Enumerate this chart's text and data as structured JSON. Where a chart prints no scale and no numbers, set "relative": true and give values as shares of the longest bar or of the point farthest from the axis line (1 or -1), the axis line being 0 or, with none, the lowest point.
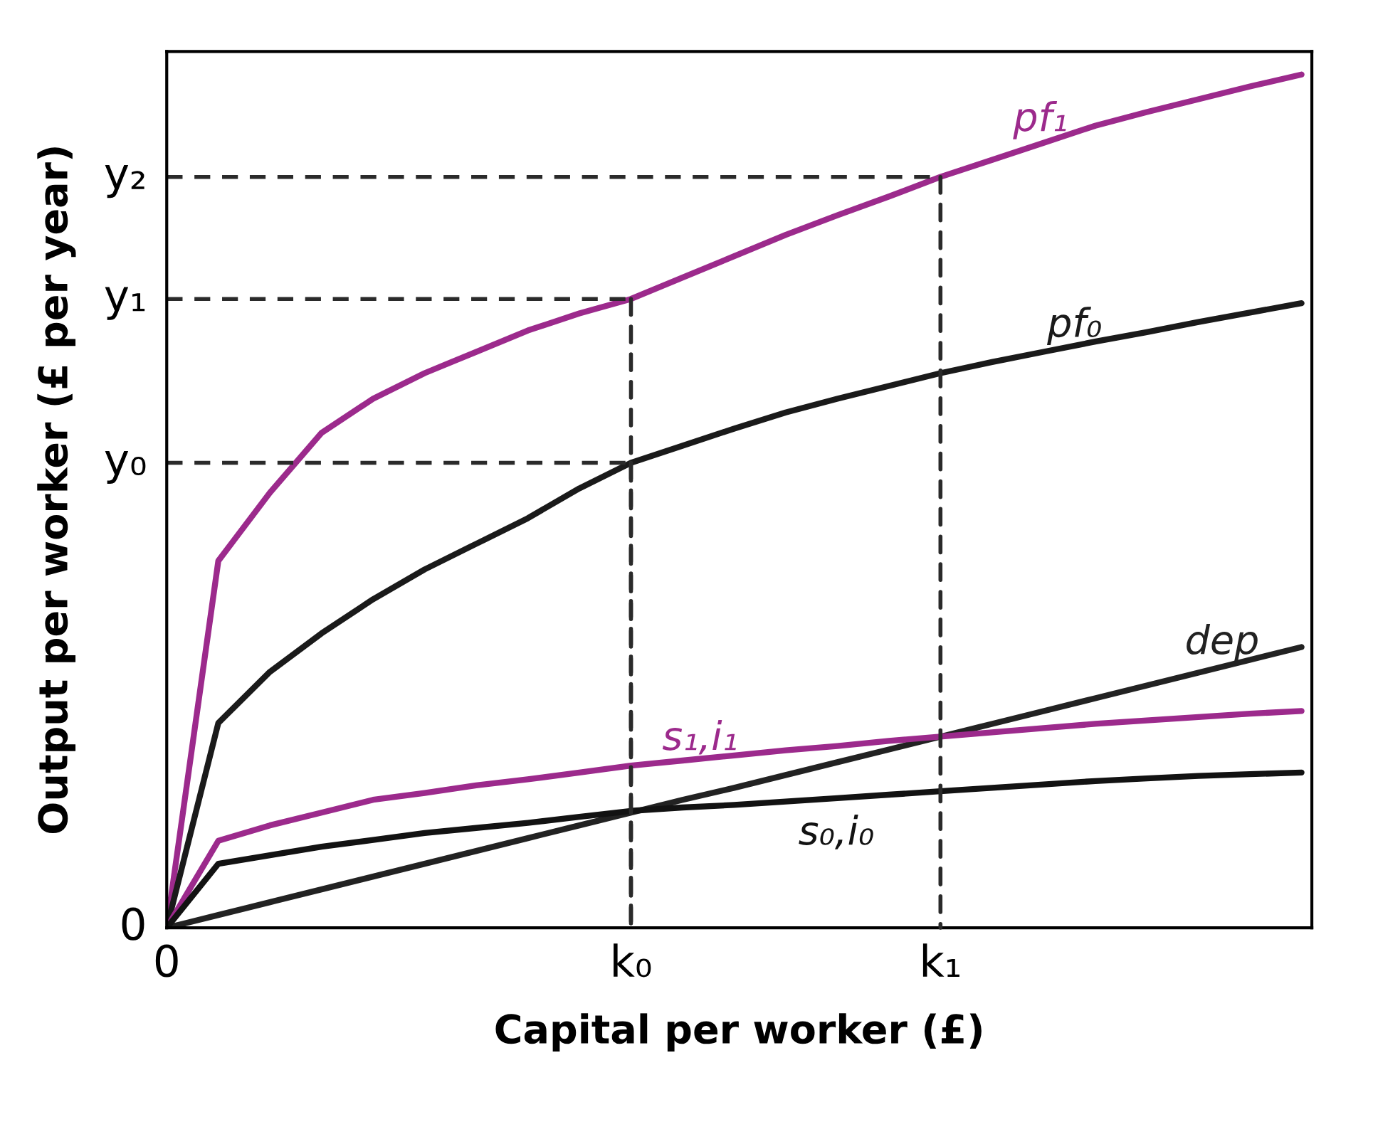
{
  "chart_data": {
    "type": "line",
    "xlabel": "Capital per worker (£)",
    "ylabel": "Output per worker (£ per year)",
    "relative": true,
    "categories": [
      "0",
      null,
      null,
      null,
      null,
      null,
      null,
      null,
      null,
      "k₀",
      null,
      null,
      null,
      null,
      null,
      "k₁",
      null,
      null,
      null,
      null,
      null,
      null,
      null
    ],
    "annotations": [
      "0",
      "y₀",
      "y₁",
      "y₂"
    ],
    "grid": false,
    "legend": false,
    "marker": "none",
    "series": [
      {
        "name": "pf₁",
        "color": "#9c2a8c",
        "values": [
          0,
          0.43,
          0.51,
          0.58,
          0.62,
          0.65,
          0.675,
          0.7,
          0.72,
          0.737,
          0.762,
          0.787,
          0.812,
          0.835,
          0.857,
          0.88,
          0.9,
          0.92,
          0.94,
          0.956,
          0.971,
          0.986,
          1
        ]
      },
      {
        "name": "pf₀",
        "color": "#1a1a1a",
        "values": [
          0,
          0.24,
          0.3,
          0.345,
          0.385,
          0.42,
          0.45,
          0.48,
          0.515,
          0.545,
          0.565,
          0.585,
          0.604,
          0.62,
          0.635,
          0.65,
          0.663,
          0.675,
          0.687,
          0.698,
          0.71,
          0.721,
          0.732
        ]
      },
      {
        "name": "dep",
        "color": "#222222",
        "values": [
          0,
          0.015,
          0.03,
          0.045,
          0.06,
          0.075,
          0.09,
          0.105,
          0.12,
          0.135,
          0.15,
          0.164,
          0.179,
          0.194,
          0.209,
          0.224,
          0.239,
          0.254,
          0.269,
          0.284,
          0.299,
          0.314,
          0.329
        ]
      },
      {
        "name": "s₁,i₁",
        "color": "#9c2a8c",
        "values": [
          0,
          0.102,
          0.12,
          0.135,
          0.15,
          0.158,
          0.167,
          0.174,
          0.182,
          0.19,
          0.196,
          0.202,
          0.208,
          0.213,
          0.219,
          0.224,
          0.229,
          0.234,
          0.239,
          0.243,
          0.247,
          0.251,
          0.254
        ]
      },
      {
        "name": "s₀,i₀",
        "color": "#121212",
        "values": [
          0,
          0.075,
          0.085,
          0.095,
          0.103,
          0.111,
          0.117,
          0.123,
          0.13,
          0.137,
          0.141,
          0.144,
          0.148,
          0.152,
          0.156,
          0.16,
          0.164,
          0.168,
          0.172,
          0.175,
          0.178,
          0.18,
          0.182
        ]
      },
      {
        "color": "#2a2a2a",
        "line_style": "dashed",
        "values": [
          0.545,
          0.545,
          0.545,
          0.545,
          0.545,
          0.545,
          0.545,
          0.545,
          0.545,
          0.545,
          null,
          null,
          null,
          null,
          null,
          null,
          null,
          null,
          null,
          null,
          null,
          null,
          null
        ]
      },
      {
        "color": "#2a2a2a",
        "line_style": "dashed",
        "values": [
          0.737,
          0.737,
          0.737,
          0.737,
          0.737,
          0.737,
          0.737,
          0.737,
          0.737,
          0.737,
          null,
          null,
          null,
          null,
          null,
          null,
          null,
          null,
          null,
          null,
          null,
          null,
          null
        ]
      },
      {
        "color": "#2a2a2a",
        "line_style": "dashed",
        "values": [
          0.88,
          0.88,
          0.88,
          0.88,
          0.88,
          0.88,
          0.88,
          0.88,
          0.88,
          0.88,
          0.88,
          0.88,
          0.88,
          0.88,
          0.88,
          0.88,
          null,
          null,
          null,
          null,
          null,
          null,
          null
        ]
      }
    ]
  }
}
